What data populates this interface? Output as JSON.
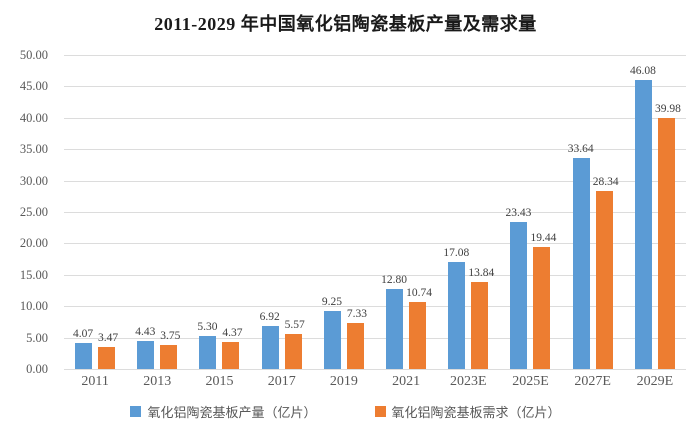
{
  "chart_data": {
    "type": "bar",
    "title": "2011-2029 年中国氧化铝陶瓷基板产量及需求量",
    "categories": [
      "2011",
      "2013",
      "2015",
      "2017",
      "2019",
      "2021",
      "2023E",
      "2025E",
      "2027E",
      "2029E"
    ],
    "series": [
      {
        "name": "氧化铝陶瓷基板产量（亿片）",
        "color": "#5B9BD5",
        "values": [
          4.07,
          4.43,
          5.3,
          6.92,
          9.25,
          12.8,
          17.08,
          23.43,
          33.64,
          46.08
        ],
        "value_labels": [
          "4.07",
          "4.43",
          "5.30",
          "6.92",
          "9.25",
          "12.80",
          "17.08",
          "23.43",
          "33.64",
          "46.08"
        ]
      },
      {
        "name": "氧化铝陶瓷基板需求（亿片）",
        "color": "#ED7D31",
        "values": [
          3.47,
          3.75,
          4.37,
          5.57,
          7.33,
          10.74,
          13.84,
          19.44,
          28.34,
          39.98
        ],
        "value_labels": [
          "3.47",
          "3.75",
          "4.37",
          "5.57",
          "7.33",
          "10.74",
          "13.84",
          "19.44",
          "28.34",
          "39.98"
        ]
      }
    ],
    "ylim": [
      0,
      50
    ],
    "ytick_step": 5,
    "ytick_labels": [
      "50.00",
      "45.00",
      "40.00",
      "35.00",
      "30.00",
      "25.00",
      "20.00",
      "15.00",
      "10.00",
      "5.00",
      "0.00"
    ],
    "grid": true,
    "gridline_color": "#dcdcdc",
    "legend_position": "bottom",
    "axis_text_color": "#595959",
    "data_label_color": "#3f3f3f"
  }
}
